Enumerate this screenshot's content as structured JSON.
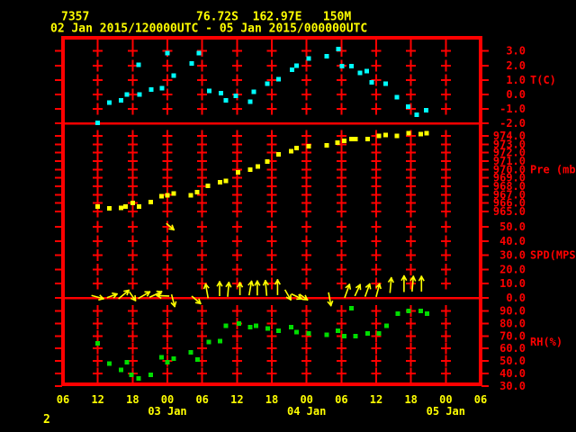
{
  "header": {
    "station_id": "7357",
    "location": "76.72S  162.97E   150M",
    "period": "02 Jan 2015/120000UTC - 05 Jan 2015/000000UTC"
  },
  "footer": {
    "page_number": "2"
  },
  "colors": {
    "background": "#000000",
    "grid": "#ff0000",
    "axis_text": "#ff0000",
    "time_text": "#ffff00",
    "temperature": "#00ffff",
    "pressure": "#ffff00",
    "wind": "#ffff00",
    "humidity": "#00dd00"
  },
  "chart_data": {
    "type": "scatter",
    "subtype": "meteogram",
    "title": "02 Jan 2015/120000UTC - 05 Jan 2015/000000UTC",
    "grid": true,
    "legend_position": "right",
    "time_axis": {
      "start_hour": 6,
      "end_hour": 78,
      "hours_origin": "2015-01-02 00UTC",
      "tick_hours": [
        6,
        12,
        18,
        24,
        30,
        36,
        42,
        48,
        54,
        60,
        66,
        72,
        78
      ],
      "tick_labels": [
        "06",
        "12",
        "18",
        "00",
        "06",
        "12",
        "18",
        "00",
        "06",
        "12",
        "18",
        "00",
        "06"
      ],
      "date_labels": [
        {
          "hour": 24,
          "label": "03 Jan"
        },
        {
          "hour": 48,
          "label": "04 Jan"
        },
        {
          "hour": 72,
          "label": "05 Jan"
        }
      ]
    },
    "panels": [
      {
        "id": "temperature",
        "unit_label": "T(C)",
        "color": "#00ffff",
        "marker": "square",
        "ylim": [
          -2,
          3.5
        ],
        "tick_values": [
          3,
          2,
          1,
          0,
          -1,
          -2
        ],
        "tick_labels": [
          "3.0",
          "2.0",
          "1.0",
          "0.0",
          "-1.0",
          "-2.0"
        ],
        "points": [
          [
            12,
            -1.95
          ],
          [
            14,
            -0.55
          ],
          [
            16,
            -0.4
          ],
          [
            17,
            0
          ],
          [
            19,
            2.05
          ],
          [
            19.2,
            0
          ],
          [
            21.2,
            0.35
          ],
          [
            23.1,
            0.45
          ],
          [
            24,
            2.85
          ],
          [
            25.1,
            1.3
          ],
          [
            28.2,
            2.15
          ],
          [
            29.4,
            2.85
          ],
          [
            31.2,
            0.25
          ],
          [
            33.2,
            0.1
          ],
          [
            34.1,
            -0.4
          ],
          [
            35.8,
            -0.1
          ],
          [
            38.3,
            -0.5
          ],
          [
            38.9,
            0.2
          ],
          [
            41.2,
            0.75
          ],
          [
            43.2,
            1.05
          ],
          [
            45.5,
            1.7
          ],
          [
            46.3,
            2
          ],
          [
            48.4,
            2.5
          ],
          [
            51.5,
            2.65
          ],
          [
            53.5,
            3.15
          ],
          [
            54.1,
            1.95
          ],
          [
            55.7,
            1.95
          ],
          [
            57.2,
            1.5
          ],
          [
            58.4,
            1.6
          ],
          [
            59.2,
            0.85
          ],
          [
            61.6,
            0.75
          ],
          [
            63.6,
            -0.2
          ],
          [
            65.5,
            -0.85
          ],
          [
            67,
            -1.4
          ],
          [
            68.6,
            -1.1
          ]
        ]
      },
      {
        "id": "pressure",
        "unit_label": "Pre (mb)",
        "color": "#ffff00",
        "marker": "square",
        "ylim": [
          964.5,
          974.5
        ],
        "tick_values": [
          974,
          973,
          972,
          971,
          970,
          969,
          968,
          967,
          966,
          965
        ],
        "tick_labels": [
          "974.0",
          "973.0",
          "972.0",
          "971.0",
          "970.0",
          "969.0",
          "968.0",
          "967.0",
          "966.0",
          "965.0"
        ],
        "points": [
          [
            12,
            965.6
          ],
          [
            14,
            965.35
          ],
          [
            16,
            965.45
          ],
          [
            16.8,
            965.6
          ],
          [
            18,
            966.0
          ],
          [
            19.1,
            965.6
          ],
          [
            21.1,
            966.15
          ],
          [
            23,
            966.8
          ],
          [
            24,
            966.95
          ],
          [
            25.1,
            967.15
          ],
          [
            28,
            966.95
          ],
          [
            29.1,
            967.3
          ],
          [
            31,
            968.05
          ],
          [
            33.1,
            968.5
          ],
          [
            34.1,
            968.65
          ],
          [
            36.2,
            969.65
          ],
          [
            38.3,
            970.0
          ],
          [
            39.6,
            970.35
          ],
          [
            41.2,
            970.95
          ],
          [
            43.2,
            971.8
          ],
          [
            45.3,
            972.2
          ],
          [
            46.3,
            972.55
          ],
          [
            48.4,
            972.75
          ],
          [
            51.5,
            972.85
          ],
          [
            53.3,
            973.2
          ],
          [
            54.5,
            973.4
          ],
          [
            55.7,
            973.6
          ],
          [
            56.4,
            973.6
          ],
          [
            58.5,
            973.65
          ],
          [
            60.5,
            974.0
          ],
          [
            61.6,
            974.1
          ],
          [
            63.6,
            974.0
          ],
          [
            65.6,
            974.3
          ],
          [
            67.7,
            974.2
          ],
          [
            68.7,
            974.3
          ]
        ]
      },
      {
        "id": "wind_speed",
        "unit_label": "SPD(MPS)",
        "color": "#ffff00",
        "marker": "arrow",
        "ylim": [
          0,
          55
        ],
        "tick_values": [
          50,
          40,
          30,
          20,
          10,
          0
        ],
        "tick_labels": [
          "50.0",
          "40.0",
          "30.0",
          "20.0",
          "10.0",
          "0.0"
        ],
        "arrows_format": "[hour, speed_mps_anchor, direction_deg_math, length_px]",
        "arrows": [
          [
            12,
            0.5,
            -15,
            13
          ],
          [
            14.5,
            1.5,
            20,
            11
          ],
          [
            16.5,
            2.5,
            40,
            14
          ],
          [
            18,
            1,
            -55,
            11
          ],
          [
            20,
            2,
            30,
            14
          ],
          [
            22,
            2.5,
            25,
            14
          ],
          [
            23.2,
            1.5,
            178,
            13
          ],
          [
            24.5,
            50,
            -40,
            10
          ],
          [
            25,
            -2,
            -75,
            13
          ],
          [
            29,
            -1.5,
            -40,
            12
          ],
          [
            30.8,
            5,
            100,
            15
          ],
          [
            33,
            6.5,
            90,
            15
          ],
          [
            34.5,
            6,
            85,
            15
          ],
          [
            36.5,
            6.5,
            90,
            13
          ],
          [
            38.3,
            7,
            80,
            15
          ],
          [
            39.5,
            7,
            90,
            15
          ],
          [
            41,
            7,
            95,
            16
          ],
          [
            43,
            7.5,
            90,
            16
          ],
          [
            44.8,
            2,
            -60,
            12
          ],
          [
            46.3,
            1,
            -25,
            12
          ],
          [
            47.5,
            0.5,
            -35,
            10
          ],
          [
            52,
            -1,
            -80,
            14
          ],
          [
            55,
            5,
            70,
            15
          ],
          [
            56.8,
            5.5,
            65,
            13
          ],
          [
            58.5,
            5.5,
            70,
            14
          ],
          [
            60.3,
            5.5,
            75,
            14
          ],
          [
            62.5,
            9,
            85,
            16
          ],
          [
            64.8,
            10,
            90,
            17
          ],
          [
            66.3,
            10,
            85,
            16
          ],
          [
            67.8,
            10,
            90,
            16
          ]
        ]
      },
      {
        "id": "relative_humidity",
        "unit_label": "RH(%)",
        "color": "#00dd00",
        "marker": "square",
        "ylim": [
          30,
          95
        ],
        "tick_values": [
          90,
          80,
          70,
          60,
          50,
          40,
          30
        ],
        "tick_labels": [
          "90.0",
          "80.0",
          "70.0",
          "60.0",
          "50.0",
          "40.0",
          "30.0"
        ],
        "points": [
          [
            12,
            64
          ],
          [
            14,
            48
          ],
          [
            16,
            43
          ],
          [
            17,
            49
          ],
          [
            17.8,
            39
          ],
          [
            19,
            36
          ],
          [
            21.1,
            39
          ],
          [
            23,
            53
          ],
          [
            24,
            49
          ],
          [
            25.1,
            52
          ],
          [
            28,
            57
          ],
          [
            29.2,
            51
          ],
          [
            31.1,
            65
          ],
          [
            33.1,
            66
          ],
          [
            34.1,
            78
          ],
          [
            36.3,
            80
          ],
          [
            38.3,
            77
          ],
          [
            39.3,
            78
          ],
          [
            41.3,
            76
          ],
          [
            43.2,
            74
          ],
          [
            45.3,
            77
          ],
          [
            46.3,
            73
          ],
          [
            48.4,
            72
          ],
          [
            51.5,
            71
          ],
          [
            53.4,
            74
          ],
          [
            54.5,
            70
          ],
          [
            55.7,
            92
          ],
          [
            56.4,
            70
          ],
          [
            58.5,
            72
          ],
          [
            60.5,
            72
          ],
          [
            61.8,
            78
          ],
          [
            63.7,
            88
          ],
          [
            65.6,
            90
          ],
          [
            67.7,
            90
          ],
          [
            68.8,
            88
          ]
        ]
      }
    ]
  }
}
